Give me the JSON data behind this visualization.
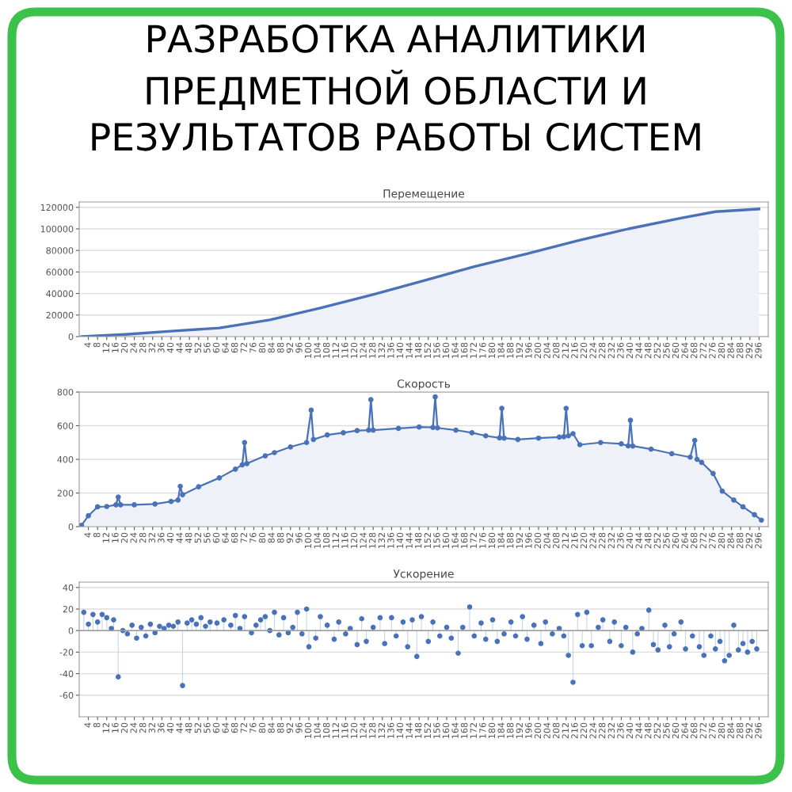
{
  "chart_data": [
    {
      "type": "other",
      "title": "РАЗРАБОТКА АНАЛИТИКИ\nПРЕДМЕТНОЙ ОБЛАСТИ И\nРЕЗУЛЬТАТОВ РАБОТЫ СИСТЕМ"
    },
    {
      "type": "area",
      "title": "Перемещение",
      "marker": "none",
      "grid": "y",
      "x": [
        1,
        20,
        40,
        61,
        83,
        105,
        128,
        150,
        172,
        195,
        217,
        239,
        262,
        277,
        296
      ],
      "series": [
        {
          "color": "#4a72b8",
          "values": [
            0,
            2000,
            5000,
            8000,
            15500,
            26500,
            39000,
            52000,
            65000,
            77000,
            89000,
            100000,
            110000,
            116000,
            118500
          ]
        }
      ],
      "xlim": [
        0,
        300
      ],
      "ylim": [
        0,
        125000
      ],
      "yticks": [
        0,
        20000,
        40000,
        60000,
        80000,
        100000,
        120000
      ],
      "xticks": [
        4,
        8,
        12,
        16,
        20,
        24,
        28,
        32,
        36,
        40,
        44,
        48,
        52,
        56,
        60,
        64,
        68,
        72,
        76,
        80,
        84,
        88,
        92,
        96,
        100,
        104,
        108,
        112,
        116,
        120,
        124,
        128,
        132,
        136,
        140,
        144,
        148,
        152,
        156,
        160,
        164,
        168,
        172,
        176,
        180,
        184,
        188,
        192,
        196,
        200,
        204,
        208,
        212,
        216,
        220,
        224,
        228,
        232,
        236,
        240,
        244,
        248,
        252,
        256,
        260,
        264,
        268,
        272,
        276,
        280,
        284,
        288,
        292,
        296
      ]
    },
    {
      "type": "area",
      "title": "Скорость",
      "marker": "circle",
      "grid": "y",
      "x": [
        1,
        4,
        8,
        12,
        16,
        17,
        18,
        24,
        33,
        40,
        43,
        44,
        45,
        52,
        61,
        68,
        71,
        72,
        73,
        81,
        85,
        92,
        99,
        101,
        102,
        108,
        115,
        121,
        126,
        127,
        128,
        139,
        148,
        154,
        155,
        156,
        164,
        171,
        177,
        183,
        184,
        185,
        191,
        200,
        209,
        211,
        212,
        213,
        215,
        218,
        227,
        236,
        239,
        240,
        241,
        249,
        258,
        266,
        268,
        269,
        271,
        276,
        280,
        285,
        289,
        294,
        297
      ],
      "series": [
        {
          "color": "#4a72b8",
          "values": [
            8,
            65,
            118,
            120,
            130,
            176,
            130,
            130,
            135,
            150,
            158,
            240,
            190,
            237,
            290,
            342,
            368,
            500,
            375,
            421,
            440,
            474,
            500,
            692,
            518,
            545,
            558,
            571,
            574,
            755,
            574,
            584,
            592,
            590,
            771,
            587,
            574,
            558,
            540,
            528,
            703,
            526,
            518,
            526,
            532,
            535,
            703,
            540,
            553,
            487,
            500,
            492,
            480,
            632,
            479,
            461,
            434,
            413,
            513,
            400,
            382,
            316,
            211,
            158,
            118,
            71,
            39
          ]
        }
      ],
      "xlim": [
        0,
        300
      ],
      "ylim": [
        0,
        800
      ],
      "yticks": [
        0,
        200,
        400,
        600,
        800
      ],
      "xticks": [
        4,
        8,
        12,
        16,
        20,
        24,
        28,
        32,
        36,
        40,
        44,
        48,
        52,
        56,
        60,
        64,
        68,
        72,
        76,
        80,
        84,
        88,
        92,
        96,
        100,
        104,
        108,
        112,
        116,
        120,
        124,
        128,
        132,
        136,
        140,
        144,
        148,
        152,
        156,
        160,
        164,
        168,
        172,
        176,
        180,
        184,
        188,
        192,
        196,
        200,
        204,
        208,
        212,
        216,
        220,
        224,
        228,
        232,
        236,
        240,
        244,
        248,
        252,
        256,
        260,
        264,
        268,
        272,
        276,
        280,
        284,
        288,
        292,
        296
      ]
    },
    {
      "type": "lollipop",
      "title": "Ускорение",
      "marker": "circle",
      "grid": "y",
      "x": [
        2,
        4,
        6,
        8,
        10,
        12,
        14,
        15,
        17,
        19,
        21,
        23,
        25,
        27,
        29,
        31,
        33,
        35,
        37,
        39,
        41,
        43,
        45,
        47,
        49,
        51,
        53,
        55,
        57,
        60,
        63,
        66,
        68,
        70,
        72,
        75,
        77,
        79,
        81,
        83,
        85,
        87,
        89,
        91,
        93,
        95,
        97,
        99,
        100,
        103,
        105,
        108,
        111,
        113,
        116,
        118,
        121,
        123,
        125,
        128,
        131,
        133,
        136,
        138,
        141,
        143,
        145,
        147,
        149,
        152,
        154,
        157,
        160,
        162,
        165,
        167,
        170,
        172,
        175,
        177,
        180,
        182,
        185,
        188,
        190,
        193,
        195,
        198,
        201,
        203,
        206,
        209,
        211,
        213,
        215,
        217,
        219,
        221,
        223,
        226,
        228,
        231,
        233,
        236,
        238,
        241,
        243,
        245,
        248,
        250,
        252,
        255,
        257,
        259,
        262,
        264,
        267,
        270,
        272,
        275,
        277,
        279,
        281,
        283,
        285,
        287,
        289,
        291,
        293,
        295
      ],
      "series": [
        {
          "color": "#4a72b8",
          "values": [
            17,
            6,
            15,
            8,
            15,
            12,
            2,
            10,
            -43,
            0,
            -3,
            5,
            -7,
            3,
            -5,
            6,
            -2,
            4,
            2,
            5,
            4,
            8,
            -51,
            7,
            10,
            6,
            12,
            4,
            8,
            7,
            10,
            5,
            14,
            2,
            13,
            -2,
            5,
            10,
            13,
            0,
            17,
            -4,
            12,
            -2,
            3,
            17,
            -3,
            20,
            -15,
            -7,
            13,
            5,
            -8,
            8,
            -3,
            2,
            -13,
            11,
            -10,
            3,
            12,
            -12,
            12,
            -5,
            8,
            -15,
            10,
            -24,
            13,
            -10,
            8,
            -5,
            3,
            -7,
            -21,
            3,
            22,
            -5,
            7,
            -8,
            10,
            -10,
            -3,
            8,
            -5,
            13,
            -8,
            5,
            -12,
            8,
            -3,
            2,
            -5,
            -23,
            -48,
            15,
            -14,
            17,
            -14,
            3,
            10,
            -10,
            8,
            -14,
            3,
            -20,
            -3,
            2,
            19,
            -13,
            -18,
            5,
            -15,
            -3,
            8,
            -17,
            -5,
            -15,
            -23,
            -5,
            -17,
            -10,
            -28,
            -23,
            5,
            -18,
            -12,
            -20,
            -10,
            -17
          ]
        }
      ],
      "xlim": [
        0,
        300
      ],
      "ylim": [
        -80,
        45
      ],
      "yticks": [
        -60,
        -40,
        -20,
        0,
        20,
        40
      ],
      "xticks": [
        4,
        8,
        12,
        16,
        20,
        24,
        28,
        32,
        36,
        40,
        44,
        48,
        52,
        56,
        60,
        64,
        68,
        72,
        76,
        80,
        84,
        88,
        92,
        96,
        100,
        104,
        108,
        112,
        116,
        120,
        124,
        128,
        132,
        136,
        140,
        144,
        148,
        152,
        156,
        160,
        164,
        168,
        172,
        176,
        180,
        184,
        188,
        192,
        196,
        200,
        204,
        208,
        212,
        216,
        220,
        224,
        228,
        232,
        236,
        240,
        244,
        248,
        252,
        256,
        260,
        264,
        268,
        272,
        276,
        280,
        284,
        288,
        292,
        296
      ]
    }
  ]
}
